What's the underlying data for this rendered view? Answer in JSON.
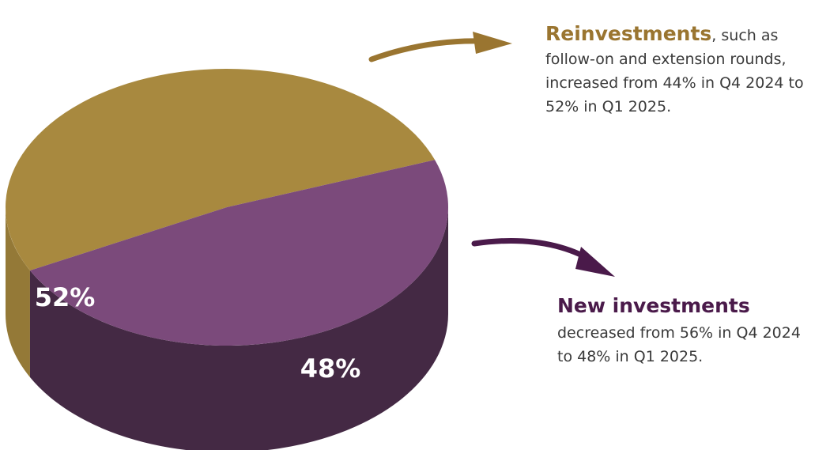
{
  "chart_data": {
    "type": "pie",
    "categories": [
      "Reinvestments",
      "New investments"
    ],
    "values": [
      52,
      48
    ],
    "value_labels": [
      "52%",
      "48%"
    ],
    "colors": [
      "#a8893f",
      "#7b4a7b"
    ],
    "annotations": [
      ", such as follow-on and extension rounds, increased from 44% in Q4 2024 to 52% in Q1 2025.",
      "decreased from 56% in Q4 2024 to 48% in Q1 2025."
    ]
  }
}
